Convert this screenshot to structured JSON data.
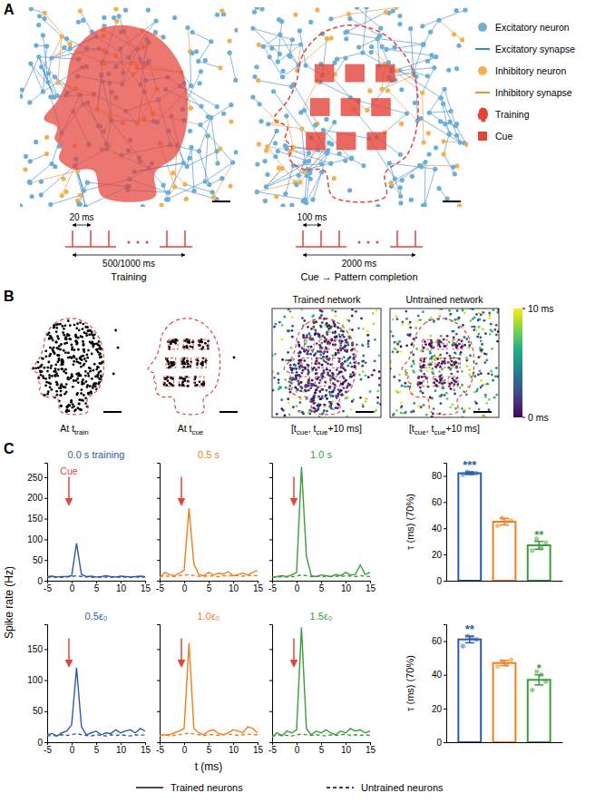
{
  "panel_labels": [
    "A",
    "B",
    "C"
  ],
  "panel_a": {
    "legend": [
      {
        "name": "Excitatory neuron",
        "color": "#6baed6",
        "marker": "circle"
      },
      {
        "name": "Excitatory synapse",
        "color": "#3a87c8",
        "marker": "line"
      },
      {
        "name": "Inhibitory neuron",
        "color": "#f4b04f",
        "marker": "circle"
      },
      {
        "name": "Inhibitory synapse",
        "color": "#f08c2e",
        "marker": "line"
      },
      {
        "name": "Training",
        "color": "#e4433a",
        "marker": "head"
      },
      {
        "name": "Cue",
        "color": "#e4433a",
        "marker": "square"
      }
    ],
    "protocols": [
      {
        "label": "Training",
        "interval": "20 ms",
        "duration": "500/1000 ms"
      },
      {
        "label": "Cue → Pattern completion",
        "interval": "100 ms",
        "duration": "2000 ms"
      }
    ]
  },
  "panel_b": {
    "snapshots": [
      {
        "title": [
          {
            "text": "At t"
          },
          {
            "sub": "train"
          }
        ]
      },
      {
        "title": [
          {
            "text": "At t"
          },
          {
            "sub": "cue"
          }
        ]
      }
    ],
    "response_maps": [
      {
        "title": "Trained network"
      },
      {
        "title": "Untrained network"
      }
    ],
    "time_window": [
      {
        "text": "[t"
      },
      {
        "sub": "cue"
      },
      {
        "text": ", t"
      },
      {
        "sub": "cue"
      },
      {
        "text": "+10 ms]"
      }
    ],
    "colorbar": {
      "range": [
        0,
        10
      ],
      "ticks": [
        {
          "value": 0,
          "label": "0 ms"
        },
        {
          "value": 10,
          "label": "10 ms"
        }
      ]
    }
  },
  "panel_c": {
    "x_label": "t (ms)",
    "y_label": "Spike rate (Hz)",
    "legend": [
      {
        "name": "Trained neurons",
        "line_style": "solid"
      },
      {
        "name": "Untrained neurons",
        "line_style": "dashed"
      }
    ]
  },
  "chart_data": [
    {
      "type": "line",
      "title": "0.0 s training",
      "annotation": "Cue",
      "cue_time": 0,
      "x": [
        -5,
        -4,
        -3,
        -2,
        -1,
        0,
        1,
        2,
        3,
        4,
        5,
        6,
        7,
        8,
        9,
        10,
        11,
        12,
        13,
        14,
        15
      ],
      "series": [
        {
          "color": "#2a5caa",
          "line_style": "solid",
          "values": [
            10,
            11,
            9,
            10,
            10,
            12,
            90,
            15,
            10,
            11,
            9,
            10,
            12,
            10,
            9,
            11,
            10,
            9,
            10,
            11,
            10
          ]
        },
        {
          "color": "#2a5caa",
          "line_style": "dashed",
          "values": [
            8,
            9,
            8,
            8,
            9,
            10,
            12,
            10,
            9,
            8,
            9,
            8,
            9,
            8,
            9,
            8,
            9,
            8,
            9,
            8,
            9
          ]
        }
      ],
      "xlim": [
        -5,
        15
      ],
      "xticks": [
        -5,
        0,
        5,
        10,
        15
      ],
      "ylim": [
        0,
        285
      ],
      "yticks": [
        0,
        50,
        100,
        150,
        200,
        250
      ]
    },
    {
      "type": "line",
      "title": "0.5 s",
      "cue_time": 0,
      "x": [
        -5,
        -4,
        -3,
        -2,
        -1,
        0,
        1,
        2,
        3,
        4,
        5,
        6,
        7,
        8,
        9,
        10,
        11,
        12,
        13,
        14,
        15
      ],
      "series": [
        {
          "color": "#f07f22",
          "line_style": "solid",
          "values": [
            6,
            20,
            15,
            12,
            18,
            25,
            175,
            40,
            15,
            12,
            20,
            14,
            18,
            16,
            22,
            12,
            15,
            18,
            14,
            20,
            25
          ]
        },
        {
          "color": "#f07f22",
          "line_style": "dashed",
          "values": [
            10,
            12,
            11,
            10,
            12,
            13,
            15,
            12,
            11,
            10,
            12,
            11,
            10,
            12,
            11,
            13,
            12,
            11,
            12,
            13,
            12
          ]
        }
      ],
      "xlim": [
        -5,
        15
      ],
      "xticks": [
        -5,
        0,
        5,
        10,
        15
      ],
      "ylim": [
        0,
        285
      ],
      "yticks": [
        0,
        50,
        100,
        150,
        200,
        250
      ],
      "tick_labels": "x"
    },
    {
      "type": "line",
      "title": "1.0 s",
      "cue_time": 0,
      "x": [
        -5,
        -4,
        -3,
        -2,
        -1,
        0,
        1,
        2,
        3,
        4,
        5,
        6,
        7,
        8,
        9,
        10,
        11,
        12,
        13,
        14,
        15
      ],
      "series": [
        {
          "color": "#3a9e3a",
          "line_style": "solid",
          "values": [
            8,
            10,
            12,
            10,
            14,
            20,
            275,
            60,
            12,
            10,
            14,
            12,
            10,
            15,
            12,
            20,
            14,
            15,
            38,
            15,
            20
          ]
        },
        {
          "color": "#3a9e3a",
          "line_style": "dashed",
          "values": [
            8,
            9,
            10,
            9,
            10,
            11,
            14,
            12,
            10,
            10,
            11,
            10,
            10,
            11,
            10,
            12,
            11,
            10,
            12,
            11,
            10
          ]
        }
      ],
      "xlim": [
        -5,
        15
      ],
      "xticks": [
        -5,
        0,
        5,
        10,
        15
      ],
      "ylim": [
        0,
        285
      ],
      "yticks": [
        0,
        50,
        100,
        150,
        200,
        250
      ],
      "tick_labels": "x"
    },
    {
      "type": "bar",
      "y_label": "τ (ms) (70%)",
      "categories": [
        null,
        null,
        null
      ],
      "values": [
        82,
        45,
        27
      ],
      "errors": [
        1,
        2.5,
        3
      ],
      "points": [
        [
          81,
          83,
          82,
          82
        ],
        [
          42,
          48,
          45,
          46
        ],
        [
          23,
          32,
          25,
          29
        ]
      ],
      "significance": [
        "***",
        null,
        "**"
      ],
      "colors": [
        "#2a5caa",
        "#f07f22",
        "#3a9e3a"
      ],
      "ylim": [
        0,
        90
      ],
      "yticks": [
        0,
        20,
        40,
        60,
        80
      ],
      "tick_labels": "y"
    },
    {
      "type": "line",
      "title": "0.5ε₀",
      "cue_time": 0,
      "x": [
        -5,
        -4,
        -3,
        -2,
        -1,
        0,
        1,
        2,
        3,
        4,
        5,
        6,
        7,
        8,
        9,
        10,
        11,
        12,
        13,
        14,
        15
      ],
      "series": [
        {
          "color": "#2a5caa",
          "line_style": "solid",
          "values": [
            12,
            14,
            10,
            15,
            18,
            28,
            120,
            25,
            12,
            15,
            18,
            12,
            15,
            14,
            20,
            15,
            18,
            20,
            15,
            22,
            18
          ]
        },
        {
          "color": "#2a5caa",
          "line_style": "dashed",
          "values": [
            10,
            11,
            10,
            12,
            11,
            12,
            14,
            12,
            11,
            10,
            12,
            11,
            10,
            12,
            11,
            12,
            11,
            10,
            12,
            11,
            12
          ]
        }
      ],
      "xlim": [
        -5,
        15
      ],
      "xticks": [
        -5,
        0,
        5,
        10,
        15
      ],
      "ylim": [
        0,
        190
      ],
      "yticks": [
        0,
        50,
        100,
        150
      ]
    },
    {
      "type": "line",
      "title": "1.0ε₀",
      "cue_time": 0,
      "x": [
        -5,
        -4,
        -3,
        -2,
        -1,
        0,
        1,
        2,
        3,
        4,
        5,
        6,
        7,
        8,
        9,
        10,
        11,
        12,
        13,
        14,
        15
      ],
      "series": [
        {
          "color": "#f07f22",
          "line_style": "solid",
          "values": [
            10,
            12,
            12,
            15,
            18,
            22,
            160,
            22,
            15,
            12,
            18,
            20,
            14,
            12,
            15,
            20,
            18,
            15,
            25,
            22,
            15
          ]
        },
        {
          "color": "#f07f22",
          "line_style": "dashed",
          "values": [
            11,
            12,
            10,
            11,
            12,
            13,
            15,
            13,
            12,
            11,
            12,
            12,
            11,
            12,
            13,
            12,
            11,
            12,
            13,
            12,
            12
          ]
        }
      ],
      "xlim": [
        -5,
        15
      ],
      "xticks": [
        -5,
        0,
        5,
        10,
        15
      ],
      "ylim": [
        0,
        190
      ],
      "yticks": [
        0,
        50,
        100,
        150
      ],
      "tick_labels": "x"
    },
    {
      "type": "line",
      "title": "1.5ε₀",
      "cue_time": 0,
      "x": [
        -5,
        -4,
        -3,
        -2,
        -1,
        0,
        1,
        2,
        3,
        4,
        5,
        6,
        7,
        8,
        9,
        10,
        11,
        12,
        13,
        14,
        15
      ],
      "series": [
        {
          "color": "#3a9e3a",
          "line_style": "solid",
          "values": [
            8,
            15,
            10,
            18,
            15,
            20,
            185,
            22,
            12,
            18,
            15,
            20,
            15,
            12,
            18,
            15,
            22,
            18,
            20,
            15,
            18
          ]
        },
        {
          "color": "#3a9e3a",
          "line_style": "dashed",
          "values": [
            10,
            11,
            12,
            11,
            10,
            12,
            13,
            12,
            11,
            12,
            11,
            10,
            12,
            11,
            12,
            13,
            11,
            12,
            11,
            12,
            11
          ]
        }
      ],
      "xlim": [
        -5,
        15
      ],
      "xticks": [
        -5,
        0,
        5,
        10,
        15
      ],
      "ylim": [
        0,
        190
      ],
      "yticks": [
        0,
        50,
        100,
        150
      ],
      "tick_labels": "x"
    },
    {
      "type": "bar",
      "y_label": "τ (ms) (70%)",
      "categories": [
        null,
        null,
        null
      ],
      "values": [
        61,
        47,
        37
      ],
      "errors": [
        2,
        1.5,
        3
      ],
      "points": [
        [
          57,
          63,
          62,
          61
        ],
        [
          45,
          48,
          46,
          49
        ],
        [
          31,
          42,
          40,
          36
        ]
      ],
      "significance": [
        "**",
        null,
        "*"
      ],
      "colors": [
        "#2a5caa",
        "#f07f22",
        "#3a9e3a"
      ],
      "ylim": [
        0,
        70
      ],
      "yticks": [
        0,
        20,
        40,
        60
      ],
      "tick_labels": "y"
    }
  ]
}
